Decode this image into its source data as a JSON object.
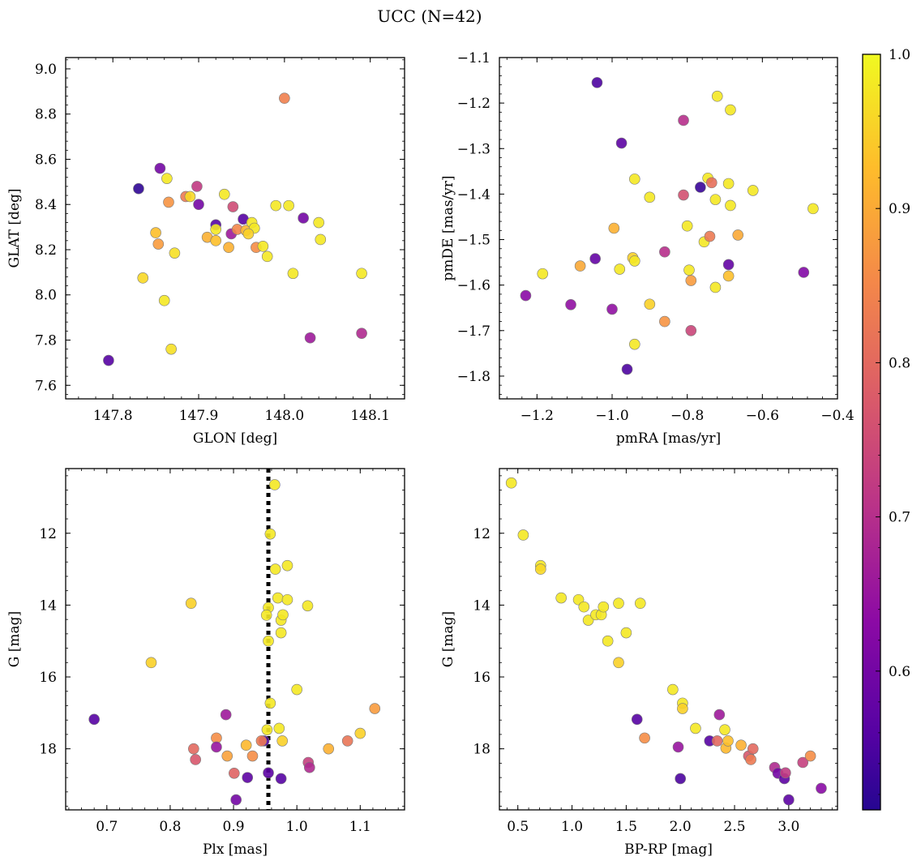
{
  "figure": {
    "title": "UCC (N=42)"
  },
  "colorbar": {
    "colormap": "plasma",
    "vmin": 0.51,
    "vmax": 1.0,
    "ticks": [
      0.6,
      0.7,
      0.8,
      0.9,
      1.0
    ],
    "tick_labels": [
      "0.6",
      "0.7",
      "0.8",
      "0.9",
      "1.0"
    ]
  },
  "chart_data": [
    {
      "id": "glon-glat",
      "type": "scatter",
      "xlabel": "GLON [deg]",
      "ylabel": "GLAT [deg]",
      "xlim": [
        147.745,
        148.14
      ],
      "ylim": [
        7.54,
        9.05
      ],
      "xticks": [
        147.8,
        147.9,
        148.0,
        148.1
      ],
      "xtick_labels": [
        "147.8",
        "147.9",
        "148.0",
        "148.1"
      ],
      "yticks": [
        7.6,
        7.8,
        8.0,
        8.2,
        8.4,
        8.6,
        8.8,
        9.0
      ],
      "ytick_labels": [
        "7.6",
        "7.8",
        "8.0",
        "8.2",
        "8.4",
        "8.6",
        "8.8",
        "9.0"
      ],
      "x": [
        147.795,
        147.83,
        147.835,
        147.85,
        147.853,
        147.855,
        147.86,
        147.863,
        147.865,
        147.868,
        147.872,
        147.885,
        147.89,
        147.898,
        147.9,
        147.91,
        147.92,
        147.92,
        147.92,
        147.93,
        147.935,
        147.938,
        147.94,
        147.945,
        147.952,
        147.955,
        147.962,
        147.965,
        147.967,
        147.975,
        147.98,
        147.99,
        148.0,
        148.005,
        148.01,
        148.022,
        148.03,
        148.04,
        148.042,
        148.09,
        148.09,
        147.958
      ],
      "y": [
        7.71,
        8.47,
        8.075,
        8.275,
        8.225,
        8.56,
        7.975,
        8.515,
        8.41,
        7.76,
        8.185,
        8.435,
        8.435,
        8.48,
        8.4,
        8.255,
        8.31,
        8.24,
        8.29,
        8.445,
        8.21,
        8.27,
        8.39,
        8.29,
        8.335,
        8.285,
        8.32,
        8.295,
        8.21,
        8.215,
        8.17,
        8.395,
        8.87,
        8.395,
        8.095,
        8.34,
        7.81,
        8.32,
        8.245,
        7.83,
        8.095,
        8.27
      ],
      "c": [
        0.56,
        0.52,
        0.96,
        0.93,
        0.88,
        0.6,
        0.98,
        0.98,
        0.87,
        0.97,
        0.97,
        0.83,
        0.96,
        0.72,
        0.6,
        0.91,
        0.56,
        0.93,
        0.98,
        0.98,
        0.91,
        0.66,
        0.75,
        0.85,
        0.56,
        0.92,
        0.98,
        0.98,
        0.86,
        0.98,
        0.98,
        0.98,
        0.84,
        0.98,
        0.98,
        0.6,
        0.66,
        0.98,
        0.98,
        0.69,
        0.98,
        0.95
      ]
    },
    {
      "id": "pm",
      "type": "scatter",
      "xlabel": "pmRA [mas/yr]",
      "ylabel": "pmDE [mas/yr]",
      "xlim": [
        -1.3,
        -0.4
      ],
      "ylim": [
        -1.85,
        -1.1
      ],
      "xticks": [
        -1.2,
        -1.0,
        -0.8,
        -0.6,
        -0.4
      ],
      "xtick_labels": [
        "−1.2",
        "−1.0",
        "−0.8",
        "−0.6",
        "−0.4"
      ],
      "yticks": [
        -1.8,
        -1.7,
        -1.6,
        -1.5,
        -1.4,
        -1.3,
        -1.2,
        -1.1
      ],
      "ytick_labels": [
        "−1.8",
        "−1.7",
        "−1.6",
        "−1.5",
        "−1.4",
        "−1.3",
        "−1.2",
        "−1.1"
      ],
      "x": [
        -1.04,
        -0.72,
        -0.685,
        -0.81,
        -0.975,
        -0.94,
        -0.745,
        -0.735,
        -0.765,
        -0.69,
        -0.625,
        -0.725,
        -0.81,
        -0.9,
        -0.685,
        -0.465,
        -0.8,
        -0.755,
        -0.74,
        -0.665,
        -0.995,
        -0.86,
        -0.945,
        -1.085,
        -0.94,
        -0.98,
        -1.045,
        -0.69,
        -0.49,
        -0.795,
        -1.185,
        -0.69,
        -0.79,
        -0.725,
        -1.23,
        -1.11,
        -0.9,
        -1.0,
        -0.86,
        -0.79,
        -0.94,
        -0.96
      ],
      "y": [
        -1.155,
        -1.185,
        -1.215,
        -1.238,
        -1.288,
        -1.367,
        -1.365,
        -1.375,
        -1.385,
        -1.377,
        -1.392,
        -1.412,
        -1.402,
        -1.407,
        -1.425,
        -1.432,
        -1.47,
        -1.505,
        -1.493,
        -1.49,
        -1.475,
        -1.527,
        -1.54,
        -1.558,
        -1.547,
        -1.565,
        -1.542,
        -1.555,
        -1.572,
        -1.567,
        -1.575,
        -1.58,
        -1.59,
        -1.605,
        -1.623,
        -1.643,
        -1.642,
        -1.653,
        -1.68,
        -1.7,
        -1.73,
        -1.785
      ],
      "c": [
        0.55,
        0.98,
        0.98,
        0.7,
        0.57,
        0.98,
        0.98,
        0.81,
        0.53,
        0.98,
        0.98,
        0.98,
        0.76,
        0.98,
        0.98,
        0.98,
        0.98,
        0.98,
        0.83,
        0.9,
        0.91,
        0.7,
        0.95,
        0.9,
        0.98,
        0.98,
        0.58,
        0.58,
        0.62,
        0.98,
        0.98,
        0.93,
        0.88,
        0.98,
        0.63,
        0.64,
        0.95,
        0.64,
        0.87,
        0.74,
        0.98,
        0.55
      ]
    },
    {
      "id": "plx-g",
      "type": "scatter",
      "xlabel": "Plx [mas]",
      "ylabel": "G [mag]",
      "xlim": [
        0.635,
        1.17
      ],
      "ylim": [
        19.7,
        10.2
      ],
      "xticks": [
        0.7,
        0.8,
        0.9,
        1.0,
        1.1
      ],
      "xtick_labels": [
        "0.7",
        "0.8",
        "0.9",
        "1.0",
        "1.1"
      ],
      "yticks": [
        12,
        14,
        16,
        18
      ],
      "ytick_labels": [
        "12",
        "14",
        "16",
        "18"
      ],
      "reference_line_x": 0.955,
      "x": [
        0.965,
        0.958,
        0.985,
        0.966,
        0.97,
        0.985,
        0.975,
        0.955,
        0.952,
        0.975,
        0.978,
        0.955,
        1.017,
        0.833,
        0.77,
        1.0,
        0.958,
        0.68,
        0.888,
        0.953,
        1.123,
        0.972,
        1.1,
        0.948,
        0.873,
        0.977,
        0.944,
        0.92,
        1.08,
        1.05,
        0.837,
        0.873,
        0.89,
        0.93,
        0.84,
        1.018,
        1.02,
        0.901,
        0.955,
        0.975,
        0.922,
        0.904
      ],
      "y": [
        10.65,
        12.02,
        12.9,
        13.0,
        13.8,
        13.85,
        14.42,
        14.07,
        14.28,
        14.77,
        14.27,
        15.0,
        14.02,
        13.95,
        15.6,
        16.35,
        16.73,
        17.18,
        17.05,
        17.47,
        16.88,
        17.43,
        17.57,
        17.78,
        17.7,
        17.78,
        17.78,
        17.9,
        17.78,
        18.0,
        18.0,
        17.95,
        18.2,
        18.2,
        18.3,
        18.38,
        18.52,
        18.68,
        18.67,
        18.83,
        18.8,
        19.42
      ],
      "c": [
        0.98,
        0.98,
        0.98,
        0.98,
        0.98,
        0.98,
        0.98,
        0.98,
        0.98,
        0.98,
        0.98,
        0.98,
        0.98,
        0.95,
        0.95,
        0.98,
        0.98,
        0.56,
        0.66,
        0.98,
        0.88,
        0.98,
        0.95,
        0.56,
        0.86,
        0.95,
        0.83,
        0.92,
        0.82,
        0.91,
        0.8,
        0.65,
        0.89,
        0.86,
        0.77,
        0.73,
        0.69,
        0.79,
        0.57,
        0.56,
        0.57,
        0.6
      ]
    },
    {
      "id": "cmd",
      "type": "scatter",
      "xlabel": "BP-RP [mag]",
      "ylabel": "G [mag]",
      "xlim": [
        0.33,
        3.45
      ],
      "ylim": [
        19.7,
        10.2
      ],
      "xticks": [
        0.5,
        1.0,
        1.5,
        2.0,
        2.5,
        3.0
      ],
      "xtick_labels": [
        "0.5",
        "1.0",
        "1.5",
        "2.0",
        "2.5",
        "3.0"
      ],
      "yticks": [
        12,
        14,
        16,
        18
      ],
      "ytick_labels": [
        "12",
        "14",
        "16",
        "18"
      ],
      "x": [
        0.44,
        0.55,
        0.71,
        0.71,
        0.9,
        1.06,
        1.11,
        1.15,
        1.22,
        1.27,
        1.29,
        1.33,
        1.43,
        1.43,
        1.5,
        1.6,
        1.67,
        1.93,
        2.02,
        2.02,
        1.98,
        2.14,
        2.27,
        2.34,
        2.36,
        2.41,
        2.42,
        2.44,
        2.56,
        2.63,
        2.65,
        2.67,
        2.87,
        2.9,
        2.96,
        2.97,
        3.0,
        3.13,
        3.2,
        3.3,
        2.0,
        1.63
      ],
      "y": [
        10.6,
        12.05,
        12.9,
        13.0,
        13.8,
        13.85,
        14.05,
        14.42,
        14.27,
        14.27,
        14.05,
        15.0,
        15.6,
        13.95,
        14.77,
        17.18,
        17.7,
        16.35,
        16.73,
        16.88,
        17.95,
        17.43,
        17.78,
        17.78,
        17.05,
        17.47,
        17.98,
        17.78,
        17.9,
        18.2,
        18.3,
        18.0,
        18.52,
        18.68,
        18.83,
        18.67,
        19.42,
        18.38,
        18.2,
        19.1,
        18.83,
        13.95
      ],
      "c": [
        0.98,
        0.98,
        0.98,
        0.96,
        0.98,
        0.98,
        0.98,
        0.98,
        0.98,
        0.98,
        0.98,
        0.98,
        0.95,
        0.98,
        0.98,
        0.56,
        0.86,
        0.98,
        0.98,
        0.95,
        0.65,
        0.98,
        0.56,
        0.8,
        0.66,
        0.98,
        0.92,
        0.93,
        0.91,
        0.77,
        0.83,
        0.8,
        0.69,
        0.6,
        0.57,
        0.72,
        0.57,
        0.73,
        0.86,
        0.63,
        0.55,
        0.98
      ]
    }
  ]
}
